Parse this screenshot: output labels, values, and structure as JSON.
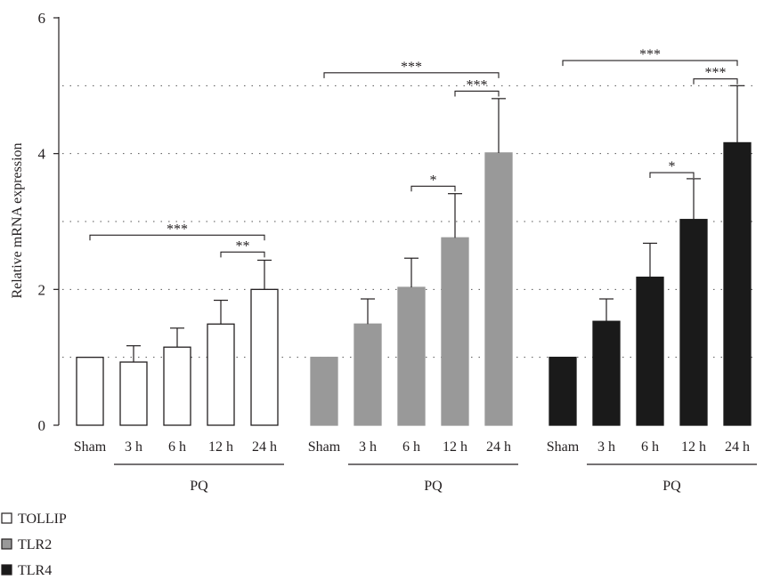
{
  "chart_data": {
    "type": "bar",
    "ylabel": "Relative mRNA expression",
    "xlabel": "",
    "title": "",
    "ylim": [
      0,
      6
    ],
    "yticks": [
      "0",
      "2",
      "4",
      "6"
    ],
    "grid_dotted_at": [
      1,
      2,
      3,
      4,
      5
    ],
    "legend_placement": "bottom-left",
    "groups": [
      {
        "name": "TOLLIP",
        "group_label": "PQ",
        "fill": "#ffffff",
        "stroke": "#231f20",
        "categories": [
          "Sham",
          "3 h",
          "6 h",
          "12 h",
          "24 h"
        ],
        "values": [
          1.0,
          0.93,
          1.15,
          1.49,
          2.0
        ],
        "errors": [
          0.0,
          0.24,
          0.28,
          0.35,
          0.43
        ],
        "significance": [
          {
            "from": 0,
            "to": 4,
            "label": "***",
            "y": 2.8
          },
          {
            "from": 3,
            "to": 4,
            "label": "**",
            "y": 2.55
          }
        ]
      },
      {
        "name": "TLR2",
        "group_label": "PQ",
        "fill": "#999999",
        "stroke": "#999999",
        "categories": [
          "Sham",
          "3 h",
          "6 h",
          "12 h",
          "24 h"
        ],
        "values": [
          1.0,
          1.49,
          2.03,
          2.76,
          4.01
        ],
        "errors": [
          0.0,
          0.37,
          0.43,
          0.65,
          0.8
        ],
        "significance": [
          {
            "from": 0,
            "to": 4,
            "label": "***",
            "y": 5.19
          },
          {
            "from": 3,
            "to": 4,
            "label": "***",
            "y": 4.92
          },
          {
            "from": 2,
            "to": 3,
            "label": "*",
            "y": 3.52
          }
        ]
      },
      {
        "name": "TLR4",
        "group_label": "PQ",
        "fill": "#1a1a1a",
        "stroke": "#1a1a1a",
        "categories": [
          "Sham",
          "3 h",
          "6 h",
          "12 h",
          "24 h"
        ],
        "values": [
          1.0,
          1.53,
          2.18,
          3.03,
          4.16
        ],
        "errors": [
          0.0,
          0.33,
          0.5,
          0.6,
          0.84
        ],
        "significance": [
          {
            "from": 0,
            "to": 4,
            "label": "***",
            "y": 5.37
          },
          {
            "from": 3,
            "to": 4,
            "label": "***",
            "y": 5.1
          },
          {
            "from": 2,
            "to": 3,
            "label": "*",
            "y": 3.72
          }
        ]
      }
    ]
  },
  "legend": [
    {
      "label": "TOLLIP",
      "color": "#ffffff"
    },
    {
      "label": "TLR2",
      "color": "#999999"
    },
    {
      "label": "TLR4",
      "color": "#1a1a1a"
    }
  ]
}
